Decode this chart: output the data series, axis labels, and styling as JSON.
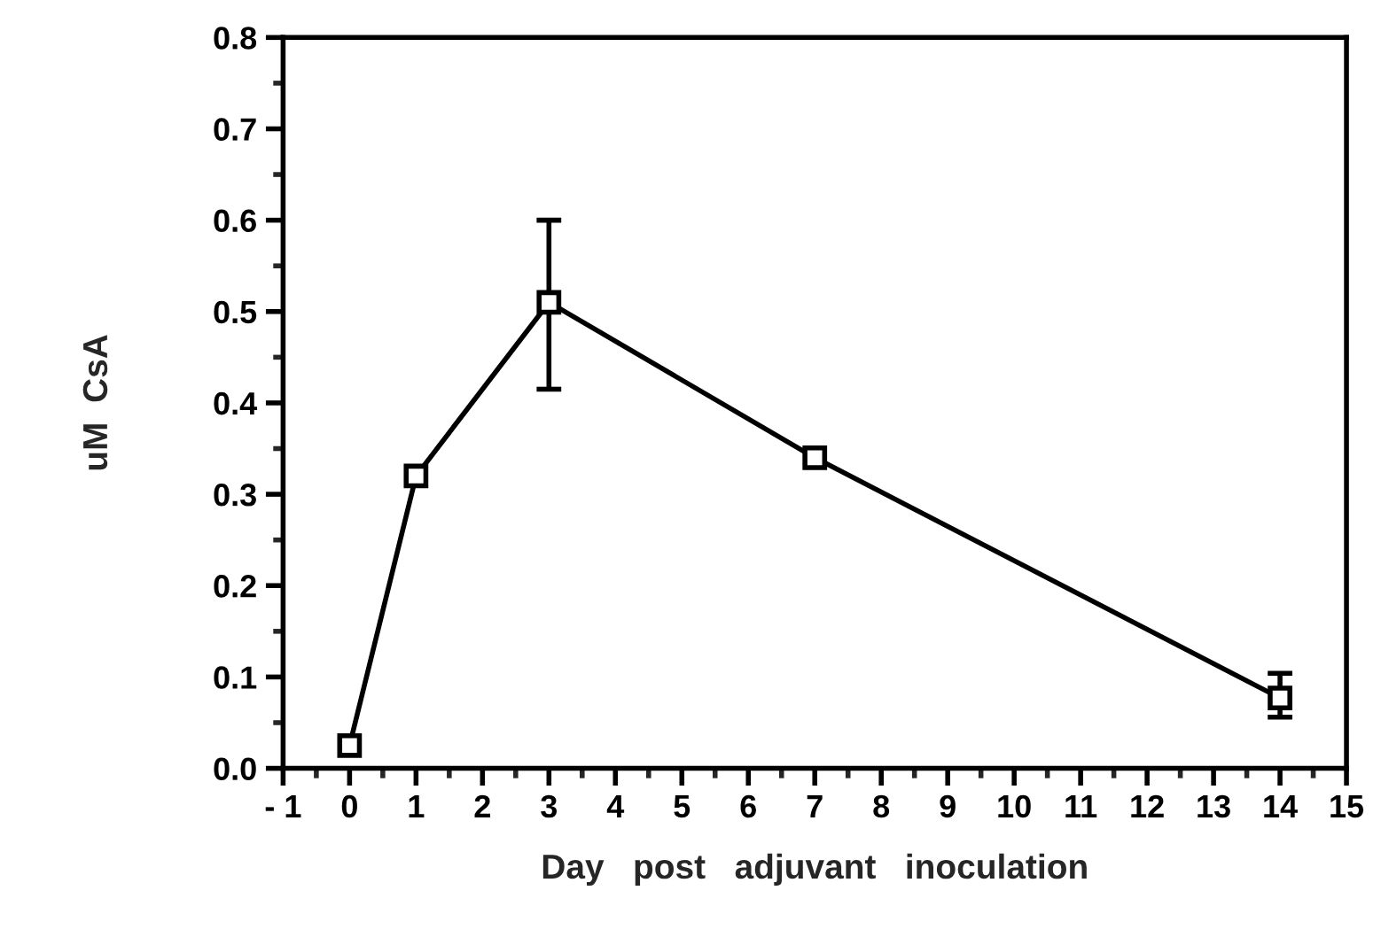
{
  "chart_data": {
    "type": "line",
    "xlabel": "Day   post   adjuvant   inoculation",
    "ylabel": "uM  CsA",
    "x": [
      0,
      1,
      3,
      7,
      14
    ],
    "series": [
      {
        "color": "#000000",
        "values": [
          0.025,
          0.32,
          0.51,
          0.34,
          0.077
        ],
        "errors": [
          null,
          null,
          [
            0.415,
            0.6
          ],
          null,
          [
            0.056,
            0.104
          ]
        ]
      }
    ],
    "xlim": [
      -1,
      15
    ],
    "xticks": [
      {
        "value": -1,
        "label": "- 1"
      },
      0,
      1,
      2,
      3,
      4,
      5,
      6,
      7,
      8,
      9,
      10,
      11,
      12,
      13,
      14,
      15
    ],
    "ylim": [
      0,
      0.8
    ],
    "yticks": [
      {
        "value": 0,
        "label": "0.0"
      },
      0.1,
      0.2,
      0.3,
      0.4,
      0.5,
      0.6,
      0.7,
      0.8
    ],
    "marker": "square",
    "line_style": "solid",
    "grid": false,
    "legend": false
  }
}
